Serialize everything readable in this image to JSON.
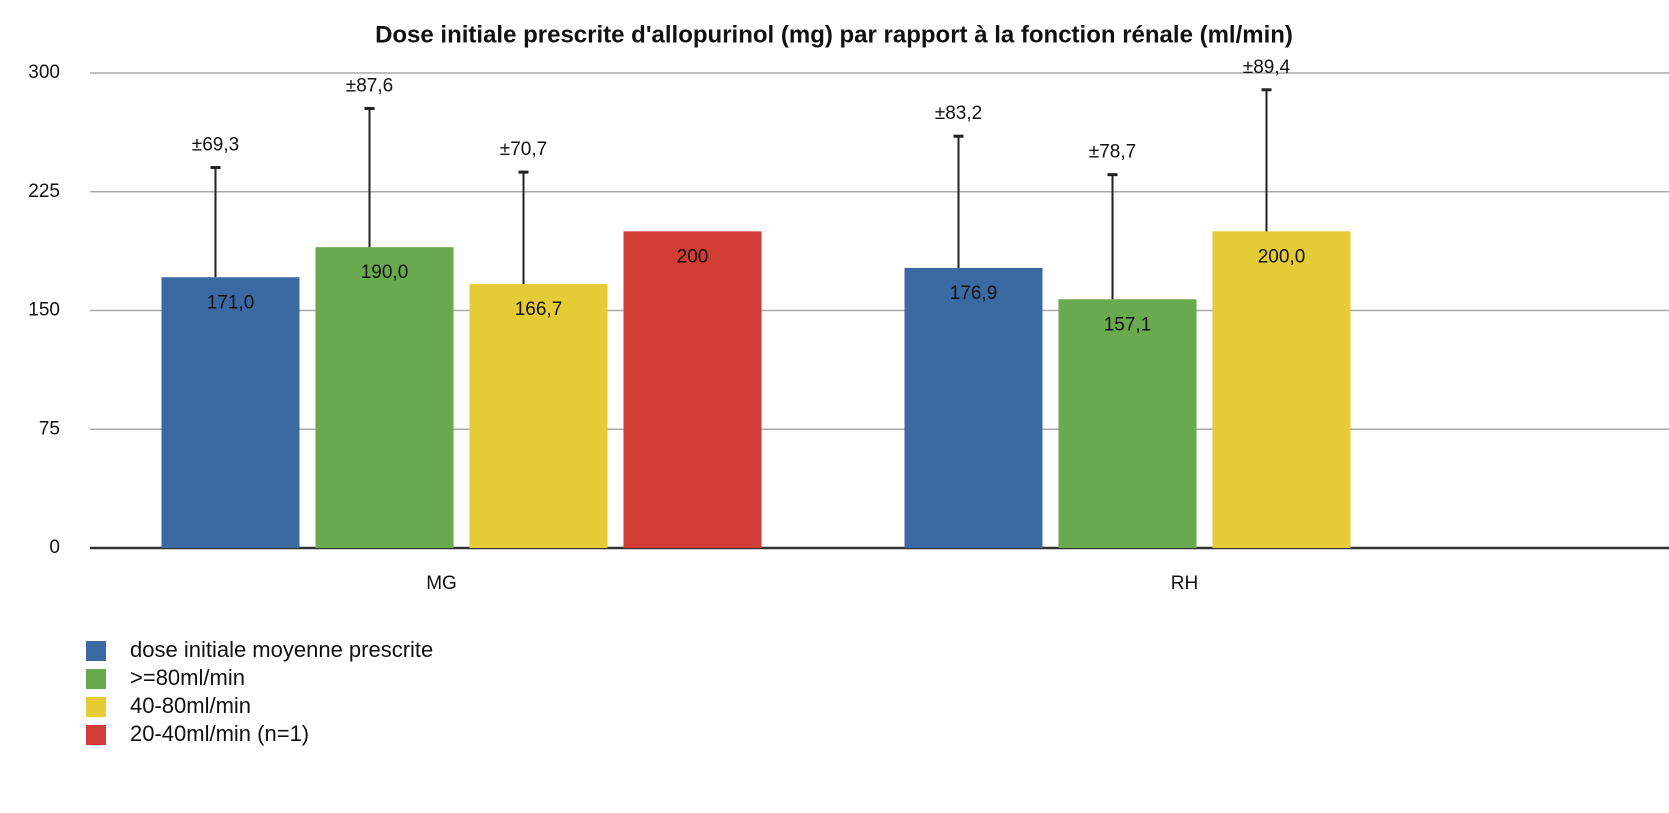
{
  "chart_data": {
    "type": "bar",
    "title": "Dose initiale prescrite d'allopurinol (mg) par rapport à la fonction rénale (ml/min)",
    "categories": [
      "MG",
      "RH"
    ],
    "series": [
      {
        "name": "dose initiale moyenne prescrite",
        "color": "#3b6aa3",
        "values": [
          171.0,
          176.9
        ],
        "value_labels": [
          "171,0",
          "176,9"
        ],
        "errors": [
          69.3,
          83.2
        ],
        "error_labels": [
          "±69,3",
          "±83,2"
        ]
      },
      {
        "name": ">=80ml/min",
        "color": "#6aaa4e",
        "values": [
          190.0,
          157.1
        ],
        "value_labels": [
          "190,0",
          "157,1"
        ],
        "errors": [
          87.6,
          78.7
        ],
        "error_labels": [
          "±87,6",
          "±78,7"
        ]
      },
      {
        "name": "40-80ml/min",
        "color": "#e5cb35",
        "values": [
          166.7,
          200.0
        ],
        "value_labels": [
          "166,7",
          "200,0"
        ],
        "errors": [
          70.7,
          89.4
        ],
        "error_labels": [
          "±70,7",
          "±89,4"
        ]
      },
      {
        "name": "20-40ml/min (n=1)",
        "color": "#d13c35",
        "values": [
          200,
          null
        ],
        "value_labels": [
          "200",
          null
        ],
        "errors": [
          null,
          null
        ],
        "error_labels": [
          null,
          null
        ]
      }
    ],
    "ylim": [
      0,
      300
    ],
    "yticks": [
      0,
      75,
      150,
      225,
      300
    ],
    "grid": true,
    "legend": "bottom-left"
  }
}
